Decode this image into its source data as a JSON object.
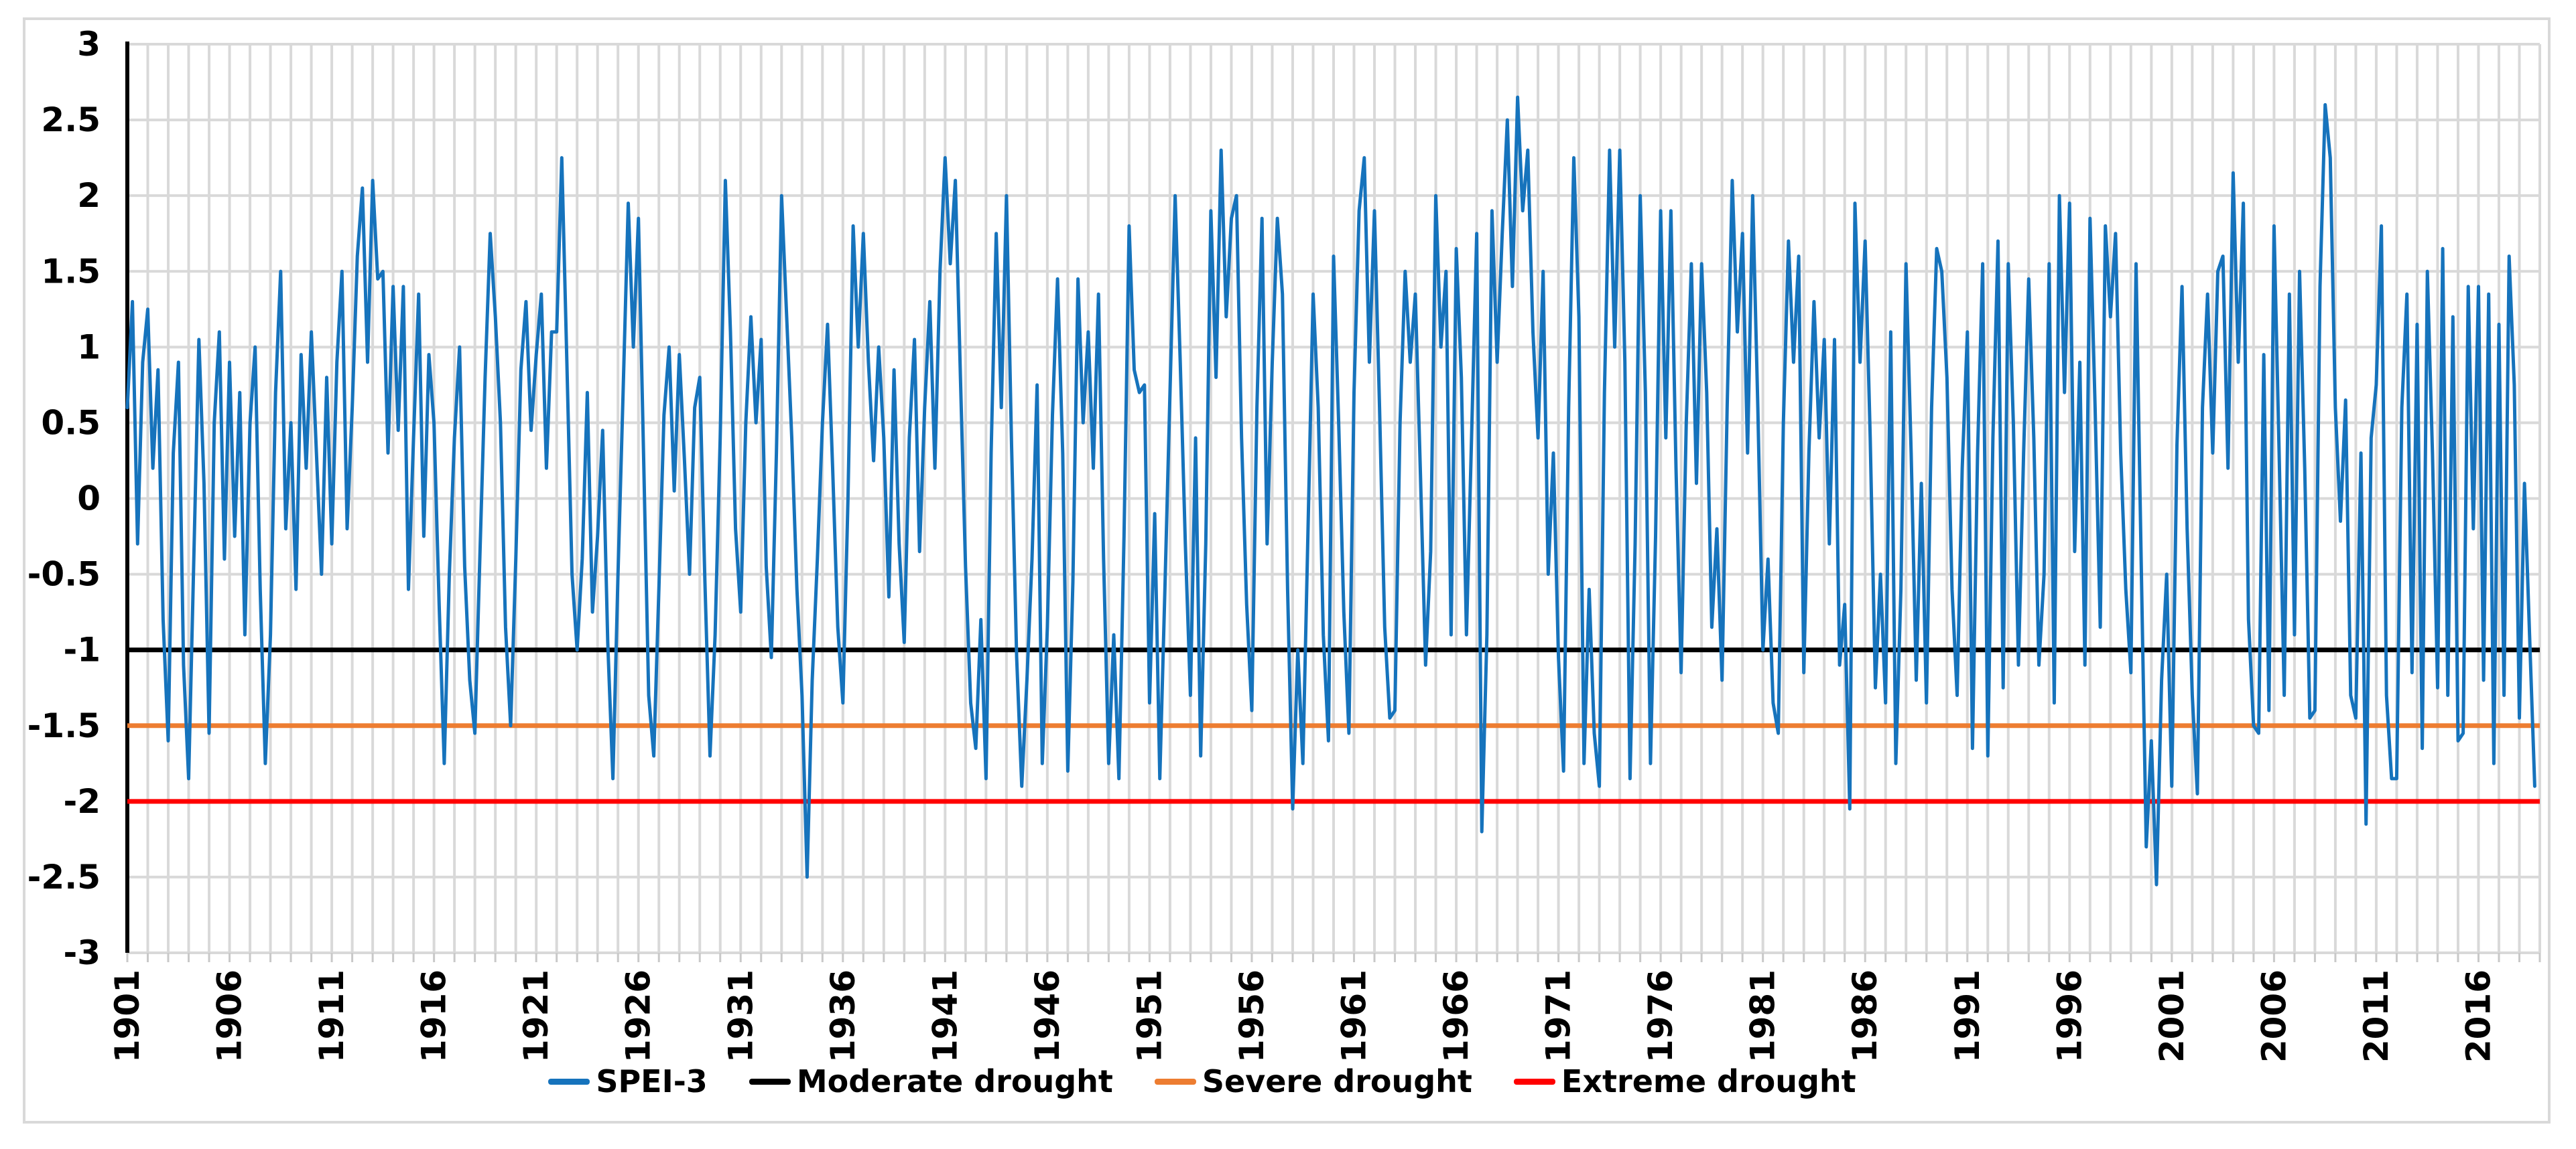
{
  "chart_data": {
    "type": "line",
    "title": "",
    "xlabel": "",
    "ylabel": "",
    "x_start_year": 1901,
    "x_end_year": 2018,
    "points_per_year": 4,
    "ylim": [
      -3,
      3
    ],
    "y_tick_step": 0.5,
    "x_tick_step_years": 5,
    "grid": "vertical gridline every year, horizontal every 0.5, light gray",
    "legend_position": "bottom-center",
    "y_tick_labels": [
      "3",
      "2.5",
      "2",
      "1.5",
      "1",
      "0.5",
      "0",
      "-0.5",
      "-1",
      "-1.5",
      "-2",
      "-2.5",
      "-3"
    ],
    "x_tick_labels": [
      "1901",
      "1906",
      "1911",
      "1916",
      "1921",
      "1926",
      "1931",
      "1936",
      "1941",
      "1946",
      "1951",
      "1956",
      "1961",
      "1966",
      "1971",
      "1976",
      "1981",
      "1986",
      "1991",
      "1996",
      "2001",
      "2006",
      "2011",
      "2016"
    ],
    "series": [
      {
        "name": "SPEI-3",
        "color": "#1673BC",
        "values": [
          0.6,
          1.3,
          -0.3,
          0.9,
          1.25,
          0.2,
          0.85,
          -0.8,
          -1.6,
          0.3,
          0.9,
          -1.1,
          -1.85,
          -0.4,
          1.05,
          0.1,
          -1.55,
          0.5,
          1.1,
          -0.4,
          0.9,
          -0.25,
          0.7,
          -0.9,
          0.5,
          1.0,
          -0.6,
          -1.75,
          -0.9,
          0.7,
          1.5,
          -0.2,
          0.5,
          -0.6,
          0.95,
          0.2,
          1.1,
          0.3,
          -0.5,
          0.8,
          -0.3,
          0.9,
          1.5,
          -0.2,
          0.6,
          1.6,
          2.05,
          0.9,
          2.1,
          1.45,
          1.5,
          0.3,
          1.4,
          0.45,
          1.4,
          -0.6,
          0.4,
          1.35,
          -0.25,
          0.95,
          0.5,
          -0.7,
          -1.75,
          -0.5,
          0.4,
          1.0,
          -0.45,
          -1.2,
          -1.55,
          -0.35,
          0.8,
          1.75,
          1.2,
          0.5,
          -0.85,
          -1.5,
          -0.4,
          0.85,
          1.3,
          0.45,
          0.95,
          1.35,
          0.2,
          1.1,
          1.1,
          2.25,
          0.9,
          -0.5,
          -1.0,
          -0.4,
          0.7,
          -0.75,
          -0.25,
          0.45,
          -0.95,
          -1.85,
          -0.5,
          0.7,
          1.95,
          1.0,
          1.85,
          0.3,
          -1.3,
          -1.7,
          -0.6,
          0.55,
          1.0,
          0.05,
          0.95,
          0.25,
          -0.5,
          0.6,
          0.8,
          -0.55,
          -1.7,
          -0.9,
          0.4,
          2.1,
          1.1,
          -0.2,
          -0.75,
          0.5,
          1.2,
          0.5,
          1.05,
          -0.45,
          -1.05,
          0.3,
          2.0,
          1.2,
          0.4,
          -0.6,
          -1.3,
          -2.5,
          -1.2,
          -0.4,
          0.5,
          1.15,
          0.2,
          -0.85,
          -1.35,
          0.0,
          1.8,
          1.0,
          1.75,
          0.9,
          0.25,
          1.0,
          0.4,
          -0.65,
          0.85,
          -0.3,
          -0.95,
          0.4,
          1.05,
          -0.35,
          0.6,
          1.3,
          0.2,
          1.5,
          2.25,
          1.55,
          2.1,
          0.8,
          -0.45,
          -1.35,
          -1.65,
          -0.8,
          -1.85,
          0.3,
          1.75,
          0.6,
          2.0,
          0.35,
          -1.05,
          -1.9,
          -1.2,
          -0.4,
          0.75,
          -1.75,
          -0.85,
          0.55,
          1.45,
          0.3,
          -1.8,
          -0.55,
          1.45,
          0.5,
          1.1,
          0.2,
          1.35,
          -0.4,
          -1.75,
          -0.9,
          -1.85,
          -0.25,
          1.8,
          0.85,
          0.7,
          0.75,
          -1.35,
          -0.1,
          -1.85,
          -0.6,
          0.7,
          2.0,
          0.9,
          -0.3,
          -1.3,
          0.4,
          -1.7,
          -0.3,
          1.9,
          0.8,
          2.3,
          1.2,
          1.85,
          2.0,
          0.4,
          -0.7,
          -1.4,
          0.6,
          1.85,
          -0.3,
          0.9,
          1.85,
          1.35,
          -0.6,
          -2.05,
          -1.0,
          -1.75,
          -0.2,
          1.35,
          0.6,
          -0.9,
          -1.6,
          1.6,
          0.5,
          -0.75,
          -1.55,
          0.7,
          1.9,
          2.25,
          0.9,
          1.9,
          0.6,
          -0.85,
          -1.45,
          -1.4,
          0.5,
          1.5,
          0.9,
          1.35,
          0.15,
          -1.1,
          -0.35,
          2.0,
          1.0,
          1.5,
          -0.9,
          1.65,
          0.8,
          -0.9,
          0.4,
          1.75,
          -2.2,
          -0.9,
          1.9,
          0.9,
          1.75,
          2.5,
          1.4,
          2.65,
          1.9,
          2.3,
          1.1,
          0.4,
          1.5,
          -0.5,
          0.3,
          -1.05,
          -1.8,
          0.6,
          2.25,
          1.2,
          -1.75,
          -0.6,
          -1.55,
          -1.9,
          0.7,
          2.3,
          1.0,
          2.3,
          0.9,
          -1.85,
          -0.3,
          2.0,
          0.7,
          -1.75,
          -0.25,
          1.9,
          0.4,
          1.9,
          0.2,
          -1.15,
          0.5,
          1.55,
          0.1,
          1.55,
          0.7,
          -0.85,
          -0.2,
          -1.2,
          0.6,
          2.1,
          1.1,
          1.75,
          0.3,
          2.0,
          0.6,
          -1.0,
          -0.4,
          -1.35,
          -1.55,
          0.5,
          1.7,
          0.9,
          1.6,
          -1.15,
          0.3,
          1.3,
          0.4,
          1.05,
          -0.3,
          1.05,
          -1.1,
          -0.7,
          -2.05,
          1.95,
          0.9,
          1.7,
          0.4,
          -1.25,
          -0.5,
          -1.35,
          1.1,
          -1.75,
          -0.6,
          1.55,
          0.3,
          -1.2,
          0.1,
          -1.35,
          0.6,
          1.65,
          1.5,
          0.8,
          -0.6,
          -1.3,
          0.2,
          1.1,
          -1.65,
          0.3,
          1.55,
          -1.7,
          0.4,
          1.7,
          -1.25,
          1.55,
          0.5,
          -1.1,
          0.3,
          1.45,
          0.4,
          -1.1,
          -0.5,
          1.55,
          -1.35,
          2.0,
          0.7,
          1.95,
          -0.35,
          0.9,
          -1.1,
          1.85,
          0.6,
          -0.85,
          1.8,
          1.2,
          1.75,
          0.3,
          -0.6,
          -1.15,
          1.55,
          -0.4,
          -2.3,
          -1.6,
          -2.55,
          -1.2,
          -0.5,
          -1.9,
          0.35,
          1.4,
          -0.2,
          -1.3,
          -1.95,
          0.6,
          1.35,
          0.3,
          1.5,
          1.6,
          0.2,
          2.15,
          0.9,
          1.95,
          -0.8,
          -1.5,
          -1.55,
          0.95,
          -1.4,
          1.8,
          0.3,
          -1.3,
          1.35,
          -0.9,
          1.5,
          0.2,
          -1.45,
          -1.4,
          1.4,
          2.6,
          2.25,
          0.6,
          -0.15,
          0.65,
          -1.3,
          -1.45,
          0.3,
          -2.15,
          0.4,
          0.75,
          1.8,
          -1.3,
          -1.85,
          -1.85,
          0.6,
          1.35,
          -1.15,
          1.15,
          -1.65,
          1.5,
          0.3,
          -1.25,
          1.65,
          -1.3,
          1.2,
          -1.6,
          -1.55,
          1.4,
          -0.2,
          1.4,
          -1.2,
          1.35,
          -1.75,
          1.15,
          -1.3,
          1.6,
          0.75,
          -1.45,
          0.1,
          -0.9,
          -1.9
        ]
      }
    ],
    "reference_lines": [
      {
        "label": "Moderate drought",
        "value": -1,
        "color": "#000000"
      },
      {
        "label": "Severe drought",
        "value": -1.5,
        "color": "#ED7D31"
      },
      {
        "label": "Extreme drought",
        "value": -2,
        "color": "#FF0000"
      }
    ],
    "colors": {
      "gridline": "#D9D9D9",
      "axis": "#000000",
      "tick": "#C9C9C9",
      "frame_border": "#D9D9D9",
      "background": "#FFFFFF",
      "label_text": "#000000"
    }
  }
}
